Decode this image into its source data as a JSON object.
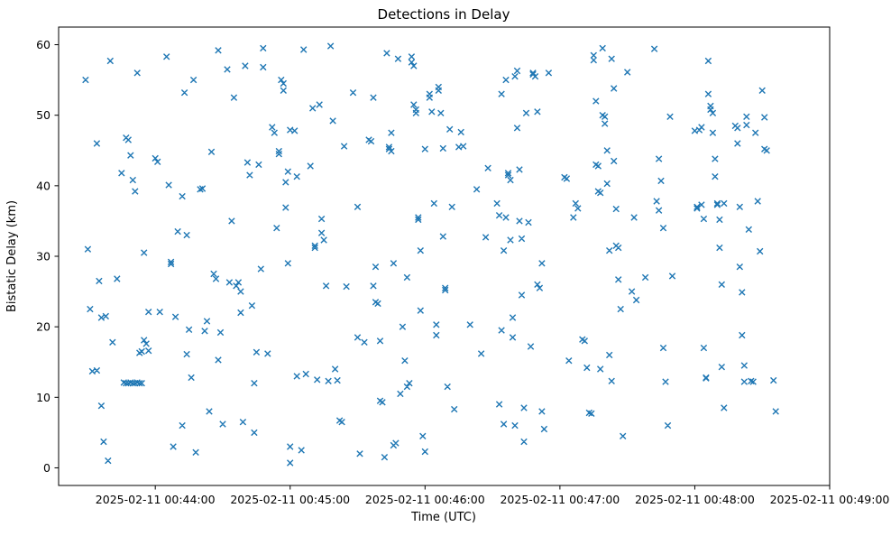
{
  "chart_data": {
    "type": "scatter",
    "marker": "x",
    "marker_color": "#1f77b4",
    "title": "Detections in Delay",
    "xlabel": "Time (UTC)",
    "ylabel": "Bistatic Delay (km)",
    "grid": false,
    "legend": "none",
    "x_unit": "seconds after 2025-02-11 00:44:00 UTC",
    "xlim_seconds": [
      -43,
      300
    ],
    "ylim": [
      -2.5,
      62.5
    ],
    "x_ticks": [
      {
        "seconds": 0,
        "label": "2025-02-11 00:44:00"
      },
      {
        "seconds": 60,
        "label": "2025-02-11 00:45:00"
      },
      {
        "seconds": 120,
        "label": "2025-02-11 00:46:00"
      },
      {
        "seconds": 180,
        "label": "2025-02-11 00:47:00"
      },
      {
        "seconds": 240,
        "label": "2025-02-11 00:48:00"
      },
      {
        "seconds": 300,
        "label": "2025-02-11 00:49:00"
      }
    ],
    "y_ticks": [
      0,
      10,
      20,
      30,
      40,
      50,
      60
    ],
    "points": [
      [
        -31,
        55.0
      ],
      [
        -30,
        31.0
      ],
      [
        -29,
        22.5
      ],
      [
        -28,
        13.7
      ],
      [
        -26,
        13.8
      ],
      [
        -26,
        46.0
      ],
      [
        -25,
        26.5
      ],
      [
        -24,
        21.3
      ],
      [
        -22,
        21.5
      ],
      [
        -24,
        8.8
      ],
      [
        -23,
        3.7
      ],
      [
        -21,
        1.0
      ],
      [
        -20,
        57.7
      ],
      [
        -19,
        17.8
      ],
      [
        -17,
        26.8
      ],
      [
        -15,
        41.8
      ],
      [
        -13,
        46.8
      ],
      [
        -12,
        46.5
      ],
      [
        -11,
        44.3
      ],
      [
        -10,
        40.8
      ],
      [
        -9,
        39.2
      ],
      [
        -14,
        12.1
      ],
      [
        -13,
        12.0
      ],
      [
        -12,
        12.0
      ],
      [
        -11,
        12.1
      ],
      [
        -10,
        12.0
      ],
      [
        -9,
        12.0
      ],
      [
        -8,
        12.1
      ],
      [
        -7,
        12.0
      ],
      [
        -6,
        12.0
      ],
      [
        -8,
        56.0
      ],
      [
        -7,
        16.3
      ],
      [
        -6,
        16.5
      ],
      [
        -5,
        18.1
      ],
      [
        -4,
        17.6
      ],
      [
        -5,
        30.5
      ],
      [
        -3,
        22.1
      ],
      [
        -3,
        16.6
      ],
      [
        0,
        43.9
      ],
      [
        1,
        43.4
      ],
      [
        2,
        22.1
      ],
      [
        5,
        58.3
      ],
      [
        6,
        40.1
      ],
      [
        7,
        29.2
      ],
      [
        7,
        28.9
      ],
      [
        9,
        21.4
      ],
      [
        8,
        3.0
      ],
      [
        10,
        33.5
      ],
      [
        12,
        38.5
      ],
      [
        13,
        53.2
      ],
      [
        14,
        33.0
      ],
      [
        12,
        6.0
      ],
      [
        14,
        16.1
      ],
      [
        15,
        19.6
      ],
      [
        16,
        12.8
      ],
      [
        17,
        55.0
      ],
      [
        18,
        2.2
      ],
      [
        20,
        39.5
      ],
      [
        21,
        39.6
      ],
      [
        22,
        19.4
      ],
      [
        23,
        20.8
      ],
      [
        24,
        8.0
      ],
      [
        25,
        44.8
      ],
      [
        26,
        27.5
      ],
      [
        27,
        26.8
      ],
      [
        28,
        15.3
      ],
      [
        29,
        19.2
      ],
      [
        28,
        59.2
      ],
      [
        30,
        6.2
      ],
      [
        32,
        56.5
      ],
      [
        33,
        26.3
      ],
      [
        34,
        35.0
      ],
      [
        35,
        52.5
      ],
      [
        36,
        25.8
      ],
      [
        37,
        26.3
      ],
      [
        38,
        25.0
      ],
      [
        38,
        22.0
      ],
      [
        39,
        6.5
      ],
      [
        40,
        57.0
      ],
      [
        41,
        43.3
      ],
      [
        42,
        41.5
      ],
      [
        43,
        23.0
      ],
      [
        44,
        12.0
      ],
      [
        44,
        5.0
      ],
      [
        45,
        16.4
      ],
      [
        46,
        43.0
      ],
      [
        47,
        28.2
      ],
      [
        48,
        59.5
      ],
      [
        48,
        56.8
      ],
      [
        50,
        16.2
      ],
      [
        52,
        48.3
      ],
      [
        53,
        47.5
      ],
      [
        54,
        34.0
      ],
      [
        55,
        44.9
      ],
      [
        55,
        44.5
      ],
      [
        56,
        55.0
      ],
      [
        57,
        54.5
      ],
      [
        57,
        53.5
      ],
      [
        58,
        40.5
      ],
      [
        58,
        36.9
      ],
      [
        59,
        42.0
      ],
      [
        59,
        29.0
      ],
      [
        60,
        47.9
      ],
      [
        60,
        3.0
      ],
      [
        60,
        0.7
      ],
      [
        62,
        47.8
      ],
      [
        63,
        41.3
      ],
      [
        63,
        13.0
      ],
      [
        65,
        2.5
      ],
      [
        66,
        59.3
      ],
      [
        67,
        13.3
      ],
      [
        69,
        42.8
      ],
      [
        70,
        51.0
      ],
      [
        71,
        31.5
      ],
      [
        71,
        31.2
      ],
      [
        72,
        12.5
      ],
      [
        73,
        51.5
      ],
      [
        74,
        35.3
      ],
      [
        74,
        33.3
      ],
      [
        75,
        32.3
      ],
      [
        76,
        25.8
      ],
      [
        77,
        12.3
      ],
      [
        78,
        59.8
      ],
      [
        79,
        49.2
      ],
      [
        80,
        14.0
      ],
      [
        81,
        12.4
      ],
      [
        82,
        6.7
      ],
      [
        83,
        6.5
      ],
      [
        84,
        45.6
      ],
      [
        85,
        25.7
      ],
      [
        88,
        53.2
      ],
      [
        90,
        37.0
      ],
      [
        90,
        18.5
      ],
      [
        91,
        2.0
      ],
      [
        93,
        17.8
      ],
      [
        95,
        46.5
      ],
      [
        96,
        46.3
      ],
      [
        97,
        52.5
      ],
      [
        97,
        25.8
      ],
      [
        98,
        28.5
      ],
      [
        98,
        23.5
      ],
      [
        99,
        23.3
      ],
      [
        100,
        18.0
      ],
      [
        100,
        9.5
      ],
      [
        101,
        9.3
      ],
      [
        102,
        1.5
      ],
      [
        103,
        58.8
      ],
      [
        104,
        45.5
      ],
      [
        104,
        45.2
      ],
      [
        105,
        44.9
      ],
      [
        105,
        47.5
      ],
      [
        106,
        29.0
      ],
      [
        106,
        3.2
      ],
      [
        107,
        3.5
      ],
      [
        108,
        58.0
      ],
      [
        109,
        10.5
      ],
      [
        110,
        20.0
      ],
      [
        111,
        15.2
      ],
      [
        112,
        27.0
      ],
      [
        112,
        11.5
      ],
      [
        113,
        12.0
      ],
      [
        114,
        58.3
      ],
      [
        114,
        57.5
      ],
      [
        115,
        57.0
      ],
      [
        115,
        51.5
      ],
      [
        116,
        50.8
      ],
      [
        116,
        50.3
      ],
      [
        117,
        35.5
      ],
      [
        117,
        35.2
      ],
      [
        118,
        30.8
      ],
      [
        118,
        22.3
      ],
      [
        119,
        4.5
      ],
      [
        120,
        2.3
      ],
      [
        120,
        45.2
      ],
      [
        122,
        53.0
      ],
      [
        122,
        52.5
      ],
      [
        123,
        50.5
      ],
      [
        124,
        37.5
      ],
      [
        125,
        20.3
      ],
      [
        125,
        18.8
      ],
      [
        126,
        54.0
      ],
      [
        126,
        53.5
      ],
      [
        127,
        50.3
      ],
      [
        128,
        45.3
      ],
      [
        128,
        32.8
      ],
      [
        129,
        25.5
      ],
      [
        129,
        25.2
      ],
      [
        130,
        11.5
      ],
      [
        131,
        48.0
      ],
      [
        132,
        37.0
      ],
      [
        133,
        8.3
      ],
      [
        135,
        45.5
      ],
      [
        136,
        47.6
      ],
      [
        137,
        45.6
      ],
      [
        140,
        20.3
      ],
      [
        143,
        39.5
      ],
      [
        145,
        16.2
      ],
      [
        147,
        32.7
      ],
      [
        148,
        42.5
      ],
      [
        152,
        37.5
      ],
      [
        153,
        35.8
      ],
      [
        153,
        9.0
      ],
      [
        154,
        53.0
      ],
      [
        154,
        19.5
      ],
      [
        155,
        30.8
      ],
      [
        155,
        6.2
      ],
      [
        156,
        55.0
      ],
      [
        156,
        35.5
      ],
      [
        157,
        41.8
      ],
      [
        157,
        41.5
      ],
      [
        158,
        40.8
      ],
      [
        158,
        32.3
      ],
      [
        159,
        21.3
      ],
      [
        159,
        18.5
      ],
      [
        160,
        6.0
      ],
      [
        160,
        55.5
      ],
      [
        161,
        56.3
      ],
      [
        161,
        48.2
      ],
      [
        162,
        42.3
      ],
      [
        162,
        35.0
      ],
      [
        163,
        32.5
      ],
      [
        163,
        24.5
      ],
      [
        164,
        8.5
      ],
      [
        164,
        3.7
      ],
      [
        165,
        50.3
      ],
      [
        166,
        34.8
      ],
      [
        167,
        17.2
      ],
      [
        168,
        55.8
      ],
      [
        168,
        56.0
      ],
      [
        169,
        55.5
      ],
      [
        170,
        50.5
      ],
      [
        170,
        26.0
      ],
      [
        171,
        25.5
      ],
      [
        172,
        29.0
      ],
      [
        172,
        8.0
      ],
      [
        173,
        5.5
      ],
      [
        175,
        56.0
      ],
      [
        182,
        41.2
      ],
      [
        183,
        41.0
      ],
      [
        184,
        15.2
      ],
      [
        186,
        35.5
      ],
      [
        187,
        37.5
      ],
      [
        188,
        36.8
      ],
      [
        190,
        18.2
      ],
      [
        191,
        18.0
      ],
      [
        192,
        14.2
      ],
      [
        193,
        7.8
      ],
      [
        194,
        7.7
      ],
      [
        195,
        58.5
      ],
      [
        195,
        57.8
      ],
      [
        196,
        52.0
      ],
      [
        196,
        43.0
      ],
      [
        197,
        42.8
      ],
      [
        197,
        39.2
      ],
      [
        198,
        39.0
      ],
      [
        198,
        14.0
      ],
      [
        199,
        59.5
      ],
      [
        199,
        50.0
      ],
      [
        200,
        49.8
      ],
      [
        200,
        48.8
      ],
      [
        201,
        45.0
      ],
      [
        201,
        40.3
      ],
      [
        202,
        30.8
      ],
      [
        202,
        16.0
      ],
      [
        203,
        12.3
      ],
      [
        203,
        58.0
      ],
      [
        204,
        53.8
      ],
      [
        204,
        43.5
      ],
      [
        205,
        36.7
      ],
      [
        205,
        31.5
      ],
      [
        206,
        31.2
      ],
      [
        206,
        26.7
      ],
      [
        207,
        22.5
      ],
      [
        208,
        4.5
      ],
      [
        210,
        56.1
      ],
      [
        212,
        25.0
      ],
      [
        213,
        35.5
      ],
      [
        214,
        23.8
      ],
      [
        218,
        27.0
      ],
      [
        222,
        59.4
      ],
      [
        223,
        37.8
      ],
      [
        224,
        36.5
      ],
      [
        224,
        43.8
      ],
      [
        225,
        40.7
      ],
      [
        226,
        34.0
      ],
      [
        226,
        17.0
      ],
      [
        227,
        12.2
      ],
      [
        228,
        6.0
      ],
      [
        229,
        49.8
      ],
      [
        230,
        27.2
      ],
      [
        240,
        47.8
      ],
      [
        241,
        37.0
      ],
      [
        241,
        36.8
      ],
      [
        242,
        47.9
      ],
      [
        243,
        48.3
      ],
      [
        243,
        37.3
      ],
      [
        244,
        35.3
      ],
      [
        244,
        17.0
      ],
      [
        245,
        12.8
      ],
      [
        245,
        12.7
      ],
      [
        246,
        57.7
      ],
      [
        246,
        53.0
      ],
      [
        247,
        51.3
      ],
      [
        247,
        50.8
      ],
      [
        248,
        50.3
      ],
      [
        248,
        47.5
      ],
      [
        249,
        43.8
      ],
      [
        249,
        41.3
      ],
      [
        250,
        37.5
      ],
      [
        250,
        37.3
      ],
      [
        251,
        35.2
      ],
      [
        251,
        31.2
      ],
      [
        252,
        26.0
      ],
      [
        252,
        14.3
      ],
      [
        253,
        8.5
      ],
      [
        253,
        37.5
      ],
      [
        258,
        48.5
      ],
      [
        259,
        48.2
      ],
      [
        259,
        46.0
      ],
      [
        260,
        37.0
      ],
      [
        260,
        28.5
      ],
      [
        261,
        24.9
      ],
      [
        261,
        18.8
      ],
      [
        262,
        14.5
      ],
      [
        262,
        12.2
      ],
      [
        263,
        49.8
      ],
      [
        263,
        48.6
      ],
      [
        264,
        33.8
      ],
      [
        265,
        12.3
      ],
      [
        266,
        12.2
      ],
      [
        267,
        47.5
      ],
      [
        268,
        37.8
      ],
      [
        269,
        30.7
      ],
      [
        270,
        53.5
      ],
      [
        271,
        49.7
      ],
      [
        271,
        45.2
      ],
      [
        272,
        45.0
      ],
      [
        275,
        12.4
      ],
      [
        276,
        8.0
      ]
    ]
  }
}
